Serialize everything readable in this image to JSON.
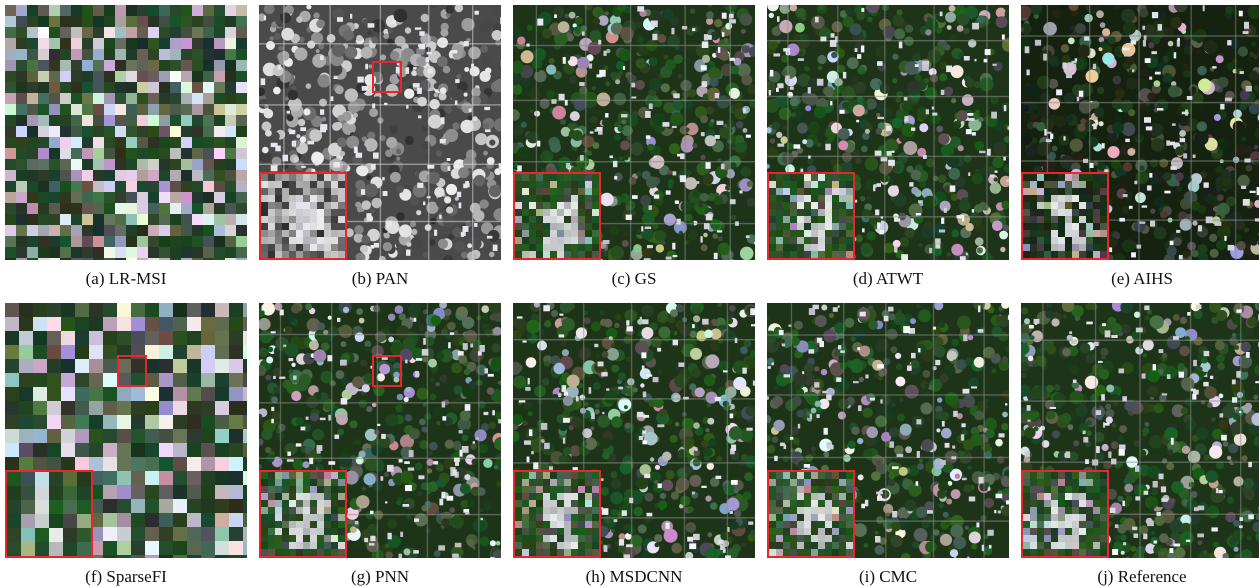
{
  "figure": {
    "panels": [
      {
        "id": "a",
        "caption": "(a) LR-MSI",
        "style": "lrmsi",
        "zoom": false
      },
      {
        "id": "b",
        "caption": "(b) PAN",
        "style": "pan",
        "zoom": true
      },
      {
        "id": "c",
        "caption": "(c) GS",
        "style": "fused",
        "zoom": true
      },
      {
        "id": "d",
        "caption": "(d) ATWT",
        "style": "fused",
        "zoom": true
      },
      {
        "id": "e",
        "caption": "(e) AIHS",
        "style": "fused-dark",
        "zoom": true
      },
      {
        "id": "f",
        "caption": "(f) SparseFI",
        "style": "sparse",
        "zoom": true
      },
      {
        "id": "g",
        "caption": "(g) PNN",
        "style": "natural",
        "zoom": true
      },
      {
        "id": "h",
        "caption": "(h) MSDCNN",
        "style": "natural",
        "zoom": true
      },
      {
        "id": "i",
        "caption": "(i) CMC",
        "style": "natural",
        "zoom": true
      },
      {
        "id": "j",
        "caption": "(j) Reference",
        "style": "natural",
        "zoom": true
      }
    ],
    "colors": {
      "roi_box": "#e8262d",
      "background": "#ffffff"
    }
  }
}
